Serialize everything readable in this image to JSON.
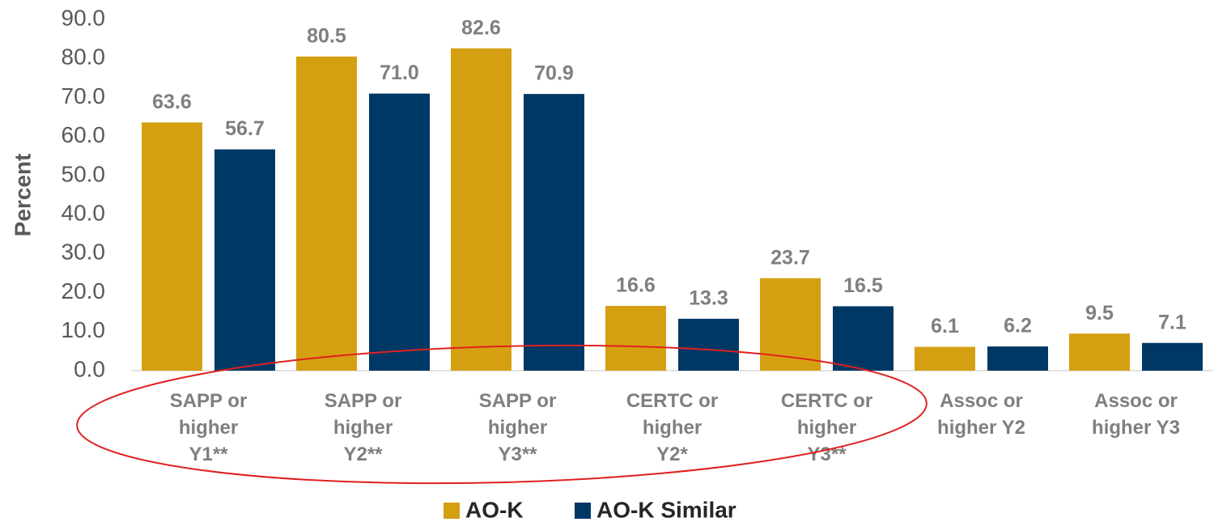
{
  "chart_data": {
    "type": "bar",
    "y_label": "Percent",
    "categories": [
      "SAPP or\nhigher\nY1**",
      "SAPP or\nhigher\nY2**",
      "SAPP or\nhigher\nY3**",
      "CERTC or\nhigher\nY2*",
      "CERTC  or\nhigher\nY3**",
      "Assoc or\nhigher Y2",
      "Assoc or\nhigher Y3"
    ],
    "series": [
      {
        "name": "AO-K",
        "color": "#d4a012",
        "values": [
          63.6,
          80.5,
          82.6,
          16.6,
          23.7,
          6.1,
          9.5
        ],
        "value_labels": [
          "63.6",
          "80.5",
          "82.6",
          "16.6",
          "23.7",
          "6.1",
          "9.5"
        ]
      },
      {
        "name": "AO-K Similar",
        "color": "#003865",
        "values": [
          56.7,
          71,
          70.9,
          13.3,
          16.5,
          6.2,
          7.1
        ],
        "value_labels": [
          "56.7",
          "71.0",
          "70.9",
          "13.3",
          "16.5",
          "6.2",
          "7.1"
        ]
      }
    ],
    "ylim": [
      0,
      90
    ],
    "yticks": [
      {
        "value": 0,
        "label": "0.0"
      },
      {
        "value": 10,
        "label": "10.0"
      },
      {
        "value": 20,
        "label": "20.0"
      },
      {
        "value": 30,
        "label": "30.0"
      },
      {
        "value": 40,
        "label": "40.0"
      },
      {
        "value": 50,
        "label": "50.0"
      },
      {
        "value": 60,
        "label": "60.0"
      },
      {
        "value": 70,
        "label": "70.0"
      },
      {
        "value": 80,
        "label": "80.0"
      },
      {
        "value": 90,
        "label": "90.0"
      }
    ],
    "legend": "bottom"
  }
}
